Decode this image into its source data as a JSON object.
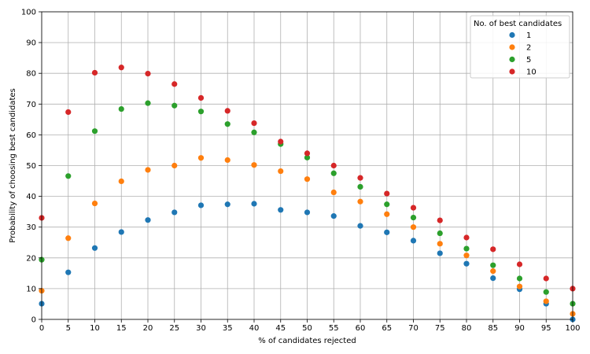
{
  "chart_data": {
    "type": "scatter",
    "title": "",
    "xlabel": "% of candidates rejected",
    "ylabel": "Probability of choosing best candidates",
    "xlim": [
      0,
      100
    ],
    "ylim": [
      0,
      100
    ],
    "xticks": [
      0,
      5,
      10,
      15,
      20,
      25,
      30,
      35,
      40,
      45,
      50,
      55,
      60,
      65,
      70,
      75,
      80,
      85,
      90,
      95,
      100
    ],
    "yticks": [
      0,
      10,
      20,
      30,
      40,
      50,
      60,
      70,
      80,
      90,
      100
    ],
    "grid": true,
    "legend_title": "No. of best candidates",
    "legend_position": "top-right",
    "x": [
      0,
      5,
      10,
      15,
      20,
      25,
      30,
      35,
      40,
      45,
      50,
      55,
      60,
      65,
      70,
      75,
      80,
      85,
      90,
      95,
      100
    ],
    "series": [
      {
        "name": "1",
        "color": "#1f77b4",
        "values": [
          5.1,
          15.3,
          23.2,
          28.4,
          32.3,
          34.8,
          37.1,
          37.4,
          37.6,
          35.6,
          34.8,
          33.6,
          30.4,
          28.3,
          25.6,
          21.5,
          18.1,
          13.4,
          9.8,
          5.1,
          0.0
        ]
      },
      {
        "name": "2",
        "color": "#ff7f0e",
        "values": [
          9.3,
          26.4,
          37.7,
          44.9,
          48.6,
          50.0,
          52.5,
          51.8,
          50.2,
          48.2,
          45.6,
          41.3,
          38.3,
          34.2,
          30.0,
          24.6,
          20.8,
          15.7,
          10.7,
          5.9,
          1.8
        ]
      },
      {
        "name": "5",
        "color": "#2ca02c",
        "values": [
          19.4,
          46.6,
          61.2,
          68.4,
          70.3,
          69.5,
          67.6,
          63.5,
          60.8,
          57.0,
          52.6,
          47.5,
          43.1,
          37.4,
          33.1,
          28.0,
          23.0,
          17.6,
          13.3,
          8.9,
          5.1
        ]
      },
      {
        "name": "10",
        "color": "#d62728",
        "values": [
          33.0,
          67.4,
          80.2,
          81.9,
          79.9,
          76.5,
          72.0,
          67.8,
          63.8,
          57.8,
          54.0,
          50.0,
          46.0,
          40.9,
          36.3,
          32.2,
          26.6,
          22.8,
          17.9,
          13.3,
          10.0
        ]
      }
    ]
  }
}
